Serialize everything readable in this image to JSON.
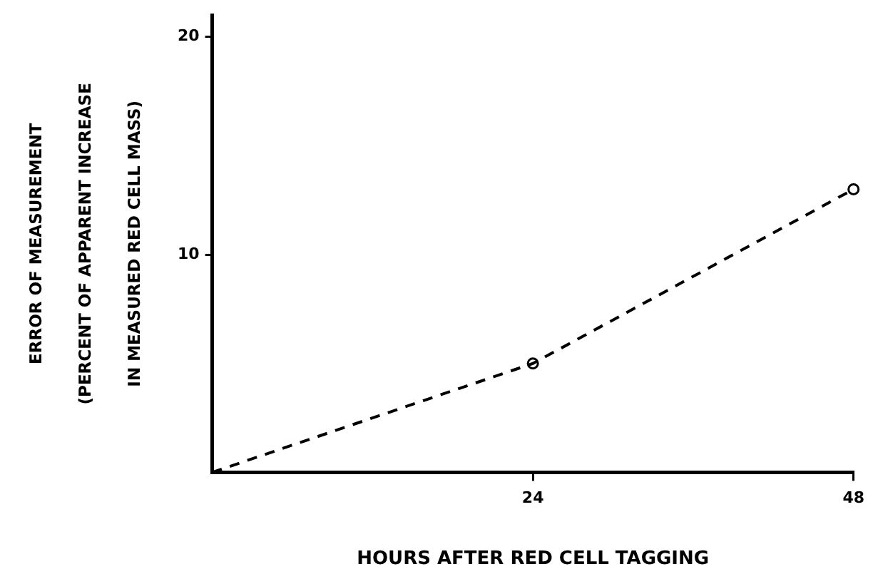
{
  "chart_data": {
    "type": "line",
    "xlabel": "HOURS AFTER RED CELL TAGGING",
    "ylabel": "ERROR OF MEASUREMENT\n(PERCENT OF APPARENT INCREASE\nIN MEASURED RED CELL MASS)",
    "xlim": [
      0,
      48
    ],
    "xticks": [
      24,
      48
    ],
    "ylim": [
      0,
      21
    ],
    "yticks": [
      10,
      20
    ],
    "grid": false,
    "legend": false,
    "series": [
      {
        "color": "#000000",
        "x": [
          0,
          24,
          48
        ],
        "values": [
          0,
          5,
          13
        ],
        "marker": "none",
        "line_style": "dashed"
      },
      {
        "type": "scatter",
        "color": "#000000",
        "x": [
          24,
          48
        ],
        "values": [
          5,
          13
        ],
        "marker": "circle"
      }
    ]
  }
}
